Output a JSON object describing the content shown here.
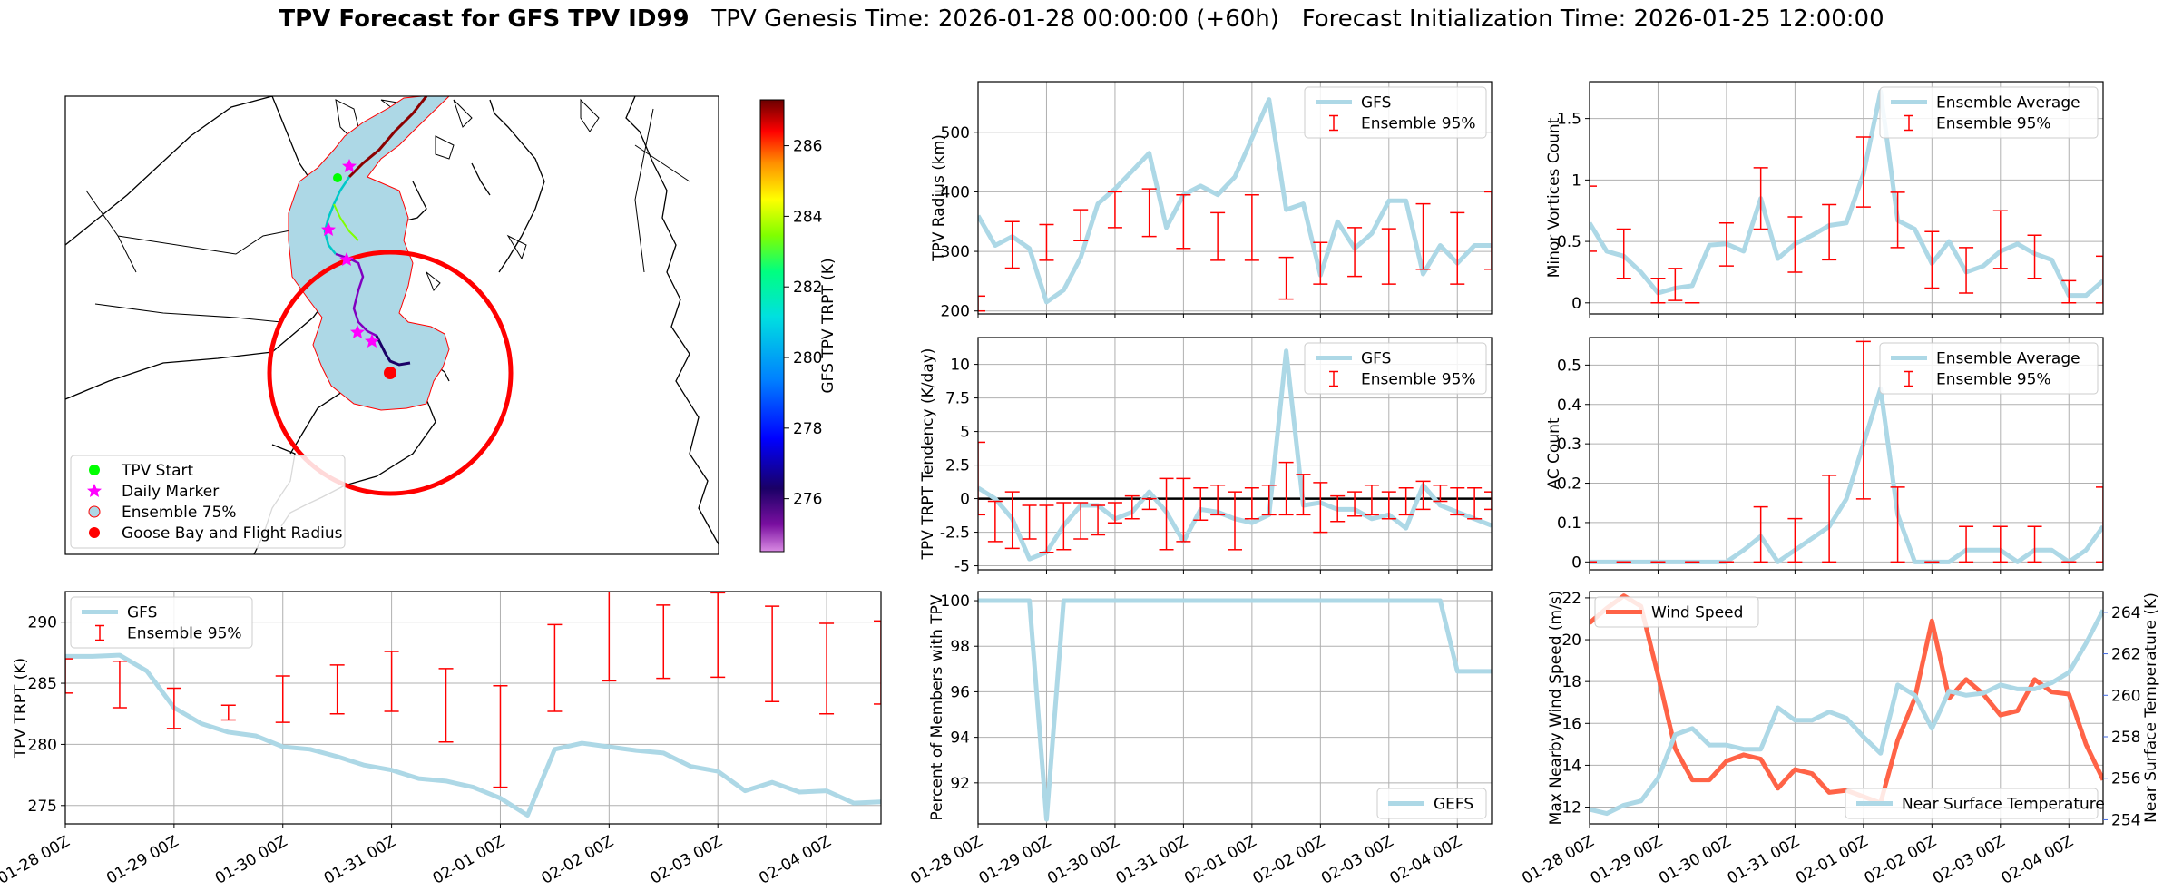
{
  "title": {
    "bold": "TPV Forecast for GFS TPV ID99",
    "genesis": "TPV Genesis Time: 2026-01-28 00:00:00 (+60h)",
    "init": "Forecast Initialization Time: 2026-01-25 12:00:00"
  },
  "colors": {
    "gfs_line": "#add8e6",
    "errbar": "#ff0000",
    "wind": "#ff6347",
    "temp_axis": "#4169e1",
    "map_fill": "#add8e6",
    "circle": "#ff0000"
  },
  "map": {
    "colorbar_label": "GFS TPV TRPT (K)",
    "colorbar_ticks": [
      276,
      278,
      280,
      282,
      284,
      286
    ],
    "colorbar_range": [
      274.5,
      287.3
    ],
    "legend": [
      {
        "label": "TPV Start",
        "marker": "circle",
        "color": "#00ff00"
      },
      {
        "label": "Daily Marker",
        "marker": "star",
        "color": "#ff00ff"
      },
      {
        "label": "Ensemble 75%",
        "marker": "circle-outline",
        "color": "#add8e6"
      },
      {
        "label": "Goose Bay and Flight Radius",
        "marker": "circle",
        "color": "#ff0000"
      }
    ]
  },
  "chart_data": [
    {
      "id": "trpt",
      "type": "line",
      "title": "",
      "xlabel": "",
      "ylabel": "TPV TRPT (K)",
      "xticks": [
        "01-28 00Z",
        "01-29 00Z",
        "01-30 00Z",
        "01-31 00Z",
        "02-01 00Z",
        "02-02 00Z",
        "02-03 00Z",
        "02-04 00Z"
      ],
      "xlim": [
        0,
        7.5
      ],
      "ylim": [
        273.5,
        292.5
      ],
      "yticks": [
        275,
        280,
        285,
        290
      ],
      "legend": [
        "GFS",
        "Ensemble 95%"
      ],
      "series": [
        {
          "name": "GFS",
          "x": [
            0,
            0.25,
            0.5,
            0.75,
            1,
            1.25,
            1.5,
            1.75,
            2,
            2.25,
            2.5,
            2.75,
            3,
            3.25,
            3.5,
            3.75,
            4,
            4.25,
            4.5,
            4.75,
            5,
            5.25,
            5.5,
            5.75,
            6,
            6.25,
            6.5,
            6.75,
            7,
            7.25,
            7.5
          ],
          "values": [
            287.2,
            287.2,
            287.3,
            286.0,
            283.0,
            281.7,
            281.0,
            280.7,
            279.8,
            279.6,
            279.0,
            278.3,
            277.9,
            277.2,
            277.0,
            276.5,
            275.6,
            274.2,
            279.6,
            280.1,
            279.8,
            279.5,
            279.3,
            278.2,
            277.8,
            276.2,
            276.9,
            276.1,
            276.2,
            275.2,
            275.3
          ]
        }
      ],
      "errorbars": {
        "name": "Ensemble 95%",
        "x": [
          0,
          0.5,
          1,
          1.5,
          2,
          2.5,
          3,
          3.5,
          4,
          4.5,
          5,
          5.5,
          6,
          6.5,
          7,
          7.5
        ],
        "low": [
          284.2,
          283.0,
          281.3,
          282.0,
          281.8,
          282.5,
          282.7,
          280.2,
          276.5,
          282.7,
          285.2,
          285.4,
          285.5,
          283.5,
          282.5,
          283.3
        ],
        "high": [
          287.0,
          286.8,
          284.6,
          283.2,
          285.6,
          286.5,
          287.6,
          286.2,
          284.8,
          289.8,
          293.1,
          291.4,
          292.4,
          291.3,
          289.9,
          290.1
        ]
      }
    },
    {
      "id": "radius",
      "type": "line",
      "ylabel": "TPV Radius (km)",
      "xlim": [
        0,
        7.5
      ],
      "ylim": [
        195,
        585
      ],
      "yticks": [
        200,
        300,
        400,
        500
      ],
      "legend": [
        "GFS",
        "Ensemble 95%"
      ],
      "series": [
        {
          "name": "GFS",
          "x": [
            0,
            0.25,
            0.5,
            0.75,
            1,
            1.25,
            1.5,
            1.75,
            2,
            2.25,
            2.5,
            2.75,
            3,
            3.25,
            3.5,
            3.75,
            4,
            4.25,
            4.5,
            4.75,
            5,
            5.25,
            5.5,
            5.75,
            6,
            6.25,
            6.5,
            6.75,
            7,
            7.25,
            7.5
          ],
          "values": [
            360,
            310,
            325,
            305,
            215,
            235,
            290,
            380,
            405,
            435,
            465,
            340,
            395,
            410,
            395,
            425,
            490,
            555,
            370,
            380,
            260,
            350,
            305,
            330,
            385,
            385,
            262,
            310,
            280,
            310,
            310
          ]
        }
      ],
      "errorbars": {
        "name": "Ensemble 95%",
        "x": [
          0,
          0.5,
          1,
          1.5,
          2,
          2.5,
          3,
          3.5,
          4,
          4.5,
          5,
          5.5,
          6,
          6.5,
          7,
          7.5
        ],
        "low": [
          200,
          272,
          285,
          318,
          340,
          325,
          305,
          285,
          285,
          220,
          245,
          258,
          245,
          270,
          245,
          270
        ],
        "high": [
          225,
          350,
          345,
          370,
          400,
          405,
          395,
          365,
          395,
          290,
          315,
          340,
          338,
          380,
          365,
          400
        ]
      }
    },
    {
      "id": "tendency",
      "type": "line",
      "ylabel": "TPV TRPT Tendency (K/day)",
      "xlim": [
        0,
        7.5
      ],
      "ylim": [
        -5.3,
        12
      ],
      "yticks": [
        -5.0,
        -2.5,
        0.0,
        2.5,
        5.0,
        7.5,
        10.0
      ],
      "legend": [
        "GFS",
        "Ensemble 95%"
      ],
      "zero_line": true,
      "series": [
        {
          "name": "GFS",
          "x": [
            0,
            0.25,
            0.5,
            0.75,
            1,
            1.25,
            1.5,
            1.75,
            2,
            2.25,
            2.5,
            2.75,
            3,
            3.25,
            3.5,
            3.75,
            4,
            4.25,
            4.5,
            4.75,
            5,
            5.25,
            5.5,
            5.75,
            6,
            6.25,
            6.5,
            6.75,
            7,
            7.25,
            7.5
          ],
          "values": [
            0.8,
            0.0,
            -1.5,
            -4.5,
            -4.0,
            -2.0,
            -0.5,
            -0.5,
            -1.5,
            -1.0,
            0.5,
            -1.0,
            -3.2,
            -0.8,
            -1.0,
            -1.5,
            -1.8,
            -1.2,
            11.0,
            -0.5,
            -0.3,
            -0.8,
            -0.8,
            -1.5,
            -1.2,
            -2.2,
            1.0,
            -0.5,
            -1.0,
            -1.5,
            -2.0
          ]
        }
      ],
      "errorbars": {
        "name": "Ensemble 95%",
        "x": [
          0,
          0.25,
          0.5,
          0.75,
          1,
          1.25,
          1.5,
          1.75,
          2,
          2.25,
          2.5,
          2.75,
          3,
          3.25,
          3.5,
          3.75,
          4,
          4.25,
          4.5,
          4.75,
          5,
          5.25,
          5.5,
          5.75,
          6,
          6.25,
          6.5,
          6.75,
          7,
          7.25,
          7.5
        ],
        "low": [
          -1.2,
          -3.2,
          -3.7,
          -3.0,
          -4.0,
          -3.8,
          -3.0,
          -2.7,
          -1.8,
          -1.5,
          -0.8,
          -3.8,
          -3.2,
          -1.6,
          -1.2,
          -3.8,
          -1.5,
          -1.2,
          -1.2,
          -1.2,
          -2.5,
          -1.7,
          -1.3,
          -1.2,
          -1.5,
          -1.2,
          -0.8,
          -0.2,
          -1.2,
          -1.5,
          -0.8
        ],
        "high": [
          4.2,
          -0.2,
          0.5,
          -0.5,
          -0.5,
          -0.3,
          -0.3,
          -0.5,
          -0.3,
          0.2,
          0.0,
          1.5,
          1.5,
          0.8,
          1.0,
          0.5,
          0.8,
          1.0,
          2.7,
          1.8,
          1.2,
          0.2,
          0.5,
          1.0,
          0.5,
          0.8,
          1.3,
          1.0,
          0.8,
          0.8,
          0.5
        ]
      }
    },
    {
      "id": "percent",
      "type": "line",
      "ylabel": "Percent of Members with TPV",
      "xticks": [
        "01-28 00Z",
        "01-29 00Z",
        "01-30 00Z",
        "01-31 00Z",
        "02-01 00Z",
        "02-02 00Z",
        "02-03 00Z",
        "02-04 00Z"
      ],
      "xlim": [
        0,
        7.5
      ],
      "ylim": [
        90.2,
        100.4
      ],
      "yticks": [
        92,
        94,
        96,
        98,
        100
      ],
      "legend": [
        "GEFS"
      ],
      "series": [
        {
          "name": "GEFS",
          "x": [
            0,
            0.75,
            1,
            1.25,
            6.75,
            7,
            7.5
          ],
          "values": [
            100,
            100,
            90.4,
            100,
            100,
            96.9,
            96.9
          ]
        }
      ]
    },
    {
      "id": "minor_vortices",
      "type": "line",
      "ylabel": "Minor Vortices Count",
      "xlim": [
        0,
        7.5
      ],
      "ylim": [
        -0.09,
        1.8
      ],
      "yticks": [
        0.0,
        0.5,
        1.0,
        1.5
      ],
      "legend": [
        "Ensemble Average",
        "Ensemble 95%"
      ],
      "series": [
        {
          "name": "Ensemble Average",
          "x": [
            0,
            0.25,
            0.5,
            0.75,
            1,
            1.25,
            1.5,
            1.75,
            2,
            2.25,
            2.5,
            2.75,
            3,
            3.25,
            3.5,
            3.75,
            4,
            4.25,
            4.5,
            4.75,
            5,
            5.25,
            5.5,
            5.75,
            6,
            6.25,
            6.5,
            6.75,
            7,
            7.25,
            7.5
          ],
          "values": [
            0.65,
            0.42,
            0.38,
            0.25,
            0.08,
            0.12,
            0.14,
            0.47,
            0.48,
            0.42,
            0.85,
            0.36,
            0.48,
            0.55,
            0.63,
            0.65,
            1.05,
            1.72,
            0.67,
            0.6,
            0.32,
            0.5,
            0.25,
            0.3,
            0.42,
            0.48,
            0.4,
            0.35,
            0.06,
            0.06,
            0.18
          ]
        }
      ],
      "errorbars": {
        "name": "Ensemble 95%",
        "x": [
          0,
          0.5,
          1,
          1.25,
          1.5,
          2,
          2.5,
          3,
          3.5,
          4,
          4.5,
          5,
          5.5,
          6,
          6.5,
          7,
          7.5
        ],
        "low": [
          0.42,
          0.2,
          0.0,
          0.02,
          0.0,
          0.3,
          0.6,
          0.25,
          0.35,
          0.78,
          0.45,
          0.12,
          0.08,
          0.28,
          0.2,
          0.0,
          0.0
        ],
        "high": [
          0.95,
          0.6,
          0.2,
          0.28,
          0.0,
          0.65,
          1.1,
          0.7,
          0.8,
          1.35,
          0.9,
          0.58,
          0.45,
          0.75,
          0.55,
          0.18,
          0.38
        ]
      }
    },
    {
      "id": "ac_count",
      "type": "line",
      "ylabel": "AC Count",
      "xlim": [
        0,
        7.5
      ],
      "ylim": [
        -0.02,
        0.57
      ],
      "yticks": [
        0.0,
        0.1,
        0.2,
        0.3,
        0.4,
        0.5
      ],
      "legend": [
        "Ensemble Average",
        "Ensemble 95%"
      ],
      "series": [
        {
          "name": "Ensemble Average",
          "x": [
            0,
            0.25,
            0.5,
            0.75,
            1,
            1.25,
            1.5,
            1.75,
            2,
            2.25,
            2.5,
            2.75,
            3,
            3.25,
            3.5,
            3.75,
            4,
            4.25,
            4.5,
            4.75,
            5,
            5.25,
            5.5,
            5.75,
            6,
            6.25,
            6.5,
            6.75,
            7,
            7.25,
            7.5
          ],
          "values": [
            0,
            0,
            0,
            0,
            0,
            0,
            0,
            0,
            0,
            0.03,
            0.065,
            0.0,
            0.03,
            0.06,
            0.09,
            0.16,
            0.3,
            0.44,
            0.12,
            0.0,
            0.0,
            0.0,
            0.03,
            0.03,
            0.03,
            0.0,
            0.03,
            0.03,
            0.0,
            0.03,
            0.09
          ]
        }
      ],
      "errorbars": {
        "name": "Ensemble 95%",
        "x": [
          0,
          0.5,
          1,
          1.5,
          2,
          2.5,
          3,
          3.5,
          4,
          4.5,
          5,
          5.5,
          6,
          6.5,
          7,
          7.5
        ],
        "low": [
          0,
          0,
          0,
          0,
          0,
          0,
          0,
          0,
          0.16,
          0,
          0,
          0,
          0,
          0,
          0,
          0
        ],
        "high": [
          0,
          0,
          0,
          0,
          0,
          0.14,
          0.11,
          0.22,
          0.56,
          0.19,
          0,
          0.09,
          0.09,
          0.09,
          0,
          0.19
        ]
      }
    },
    {
      "id": "wind_temp",
      "type": "line",
      "ylabel": "Max Nearby Wind Speed (m/s)",
      "ylabel_right": "Near Surface Temperature (K)",
      "xticks": [
        "01-28 00Z",
        "01-29 00Z",
        "01-30 00Z",
        "01-31 00Z",
        "02-01 00Z",
        "02-02 00Z",
        "02-03 00Z",
        "02-04 00Z"
      ],
      "xlim": [
        0,
        7.5
      ],
      "ylim": [
        11.2,
        22.3
      ],
      "yticks": [
        12,
        14,
        16,
        18,
        20,
        22
      ],
      "ylim_right": [
        253.8,
        265.0
      ],
      "yticks_right": [
        254,
        256,
        258,
        260,
        262,
        264
      ],
      "legend": [
        "Wind Speed",
        "Near Surface Temperature"
      ],
      "series": [
        {
          "name": "Wind Speed",
          "axis": "left",
          "x": [
            0,
            0.25,
            0.5,
            0.75,
            1,
            1.25,
            1.5,
            1.75,
            2,
            2.25,
            2.5,
            2.75,
            3,
            3.25,
            3.5,
            3.75,
            4,
            4.25,
            4.5,
            4.75,
            5,
            5.25,
            5.5,
            5.75,
            6,
            6.25,
            6.5,
            6.75,
            7,
            7.25,
            7.5
          ],
          "values": [
            20.8,
            21.5,
            22.1,
            21.6,
            18.3,
            14.8,
            13.3,
            13.3,
            14.2,
            14.5,
            14.3,
            12.9,
            13.8,
            13.6,
            12.7,
            12.8,
            12.5,
            12.2,
            15.2,
            17.2,
            20.9,
            17.2,
            18.1,
            17.4,
            16.4,
            16.6,
            18.1,
            17.5,
            17.4,
            15.0,
            13.3
          ]
        },
        {
          "name": "Near Surface Temperature",
          "axis": "right",
          "x": [
            0,
            0.25,
            0.5,
            0.75,
            1,
            1.25,
            1.5,
            1.75,
            2,
            2.25,
            2.5,
            2.75,
            3,
            3.25,
            3.5,
            3.75,
            4,
            4.25,
            4.5,
            4.75,
            5,
            5.25,
            5.5,
            5.75,
            6,
            6.25,
            6.5,
            6.75,
            7,
            7.25,
            7.5
          ],
          "values": [
            254.5,
            254.3,
            254.7,
            254.9,
            256.0,
            258.1,
            258.4,
            257.6,
            257.6,
            257.4,
            257.4,
            259.4,
            258.8,
            258.8,
            259.2,
            258.9,
            258.0,
            257.2,
            260.5,
            260.0,
            258.4,
            260.2,
            260.0,
            260.1,
            260.5,
            260.3,
            260.3,
            260.6,
            261.1,
            262.5,
            264.1
          ]
        }
      ]
    }
  ]
}
